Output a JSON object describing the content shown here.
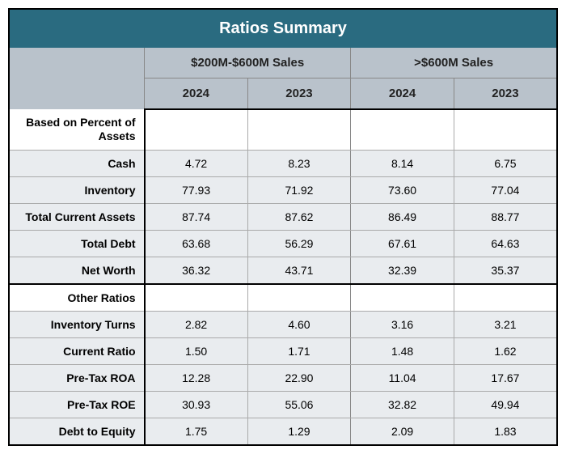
{
  "title": "Ratios Summary",
  "groups": [
    "$200M-$600M Sales",
    ">$600M Sales"
  ],
  "years": [
    "2024",
    "2023",
    "2024",
    "2023"
  ],
  "section1": "Based on Percent of Assets",
  "section2": "Other Ratios",
  "rows1": [
    {
      "label": "Cash",
      "v": [
        "4.72",
        "8.23",
        "8.14",
        "6.75"
      ]
    },
    {
      "label": "Inventory",
      "v": [
        "77.93",
        "71.92",
        "73.60",
        "77.04"
      ]
    },
    {
      "label": "Total Current Assets",
      "v": [
        "87.74",
        "87.62",
        "86.49",
        "88.77"
      ]
    },
    {
      "label": "Total Debt",
      "v": [
        "63.68",
        "56.29",
        "67.61",
        "64.63"
      ]
    },
    {
      "label": "Net Worth",
      "v": [
        "36.32",
        "43.71",
        "32.39",
        "35.37"
      ]
    }
  ],
  "rows2": [
    {
      "label": "Inventory Turns",
      "v": [
        "2.82",
        "4.60",
        "3.16",
        "3.21"
      ]
    },
    {
      "label": "Current Ratio",
      "v": [
        "1.50",
        "1.71",
        "1.48",
        "1.62"
      ]
    },
    {
      "label": "Pre-Tax ROA",
      "v": [
        "12.28",
        "22.90",
        "11.04",
        "17.67"
      ]
    },
    {
      "label": "Pre-Tax ROE",
      "v": [
        "30.93",
        "55.06",
        "32.82",
        "49.94"
      ]
    },
    {
      "label": "Debt to Equity",
      "v": [
        "1.75",
        "1.29",
        "2.09",
        "1.83"
      ]
    }
  ],
  "colors": {
    "title_bg": "#2a6b80",
    "header_bg": "#b9c2cb",
    "zebra_bg": "#e9ecef"
  }
}
